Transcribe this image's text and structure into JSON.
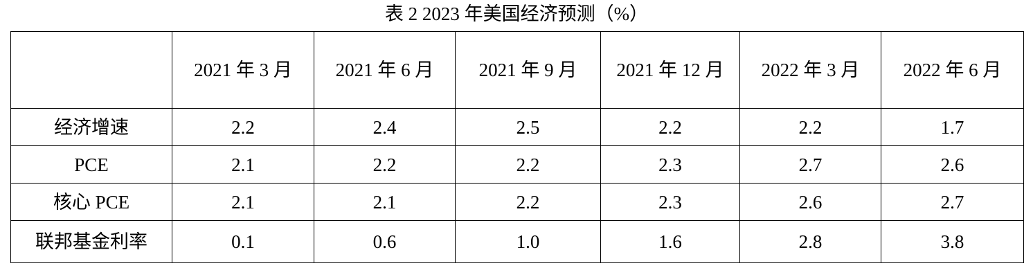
{
  "title": "表 2 2023 年美国经济预测（%）",
  "table": {
    "columns": [
      "2021 年 3 月",
      "2021 年 6 月",
      "2021 年 9 月",
      "2021 年 12 月",
      "2022 年 3 月",
      "2022 年 6 月"
    ],
    "rows": [
      {
        "label": "经济增速",
        "cells": [
          "2.2",
          "2.4",
          "2.5",
          "2.2",
          "2.2",
          "1.7"
        ]
      },
      {
        "label": "PCE",
        "cells": [
          "2.1",
          "2.2",
          "2.2",
          "2.3",
          "2.7",
          "2.6"
        ]
      },
      {
        "label": "核心 PCE",
        "cells": [
          "2.1",
          "2.1",
          "2.2",
          "2.3",
          "2.6",
          "2.7"
        ]
      },
      {
        "label": "联邦基金利率",
        "cells": [
          "0.1",
          "0.6",
          "1.0",
          "1.6",
          "2.8",
          "3.8"
        ]
      }
    ]
  }
}
